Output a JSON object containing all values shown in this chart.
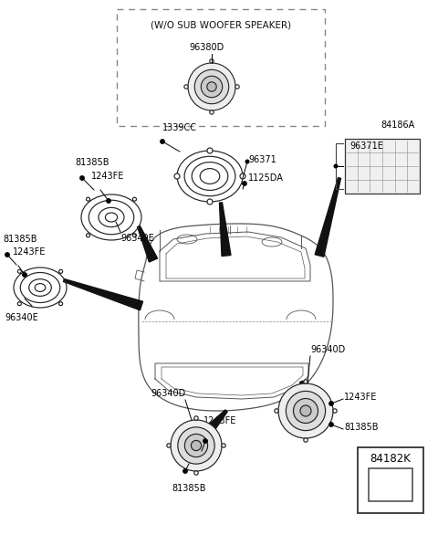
{
  "bg_color": "#ffffff",
  "fig_width": 4.8,
  "fig_height": 5.86,
  "dpi": 100,
  "labels": {
    "woofer_box_text": "(W/O SUB WOOFER SPEAKER)",
    "p96380D": "96380D",
    "p1339CC": "1339CC",
    "p96371": "96371",
    "p1125DA": "1125DA",
    "p84186A": "84186A",
    "p96371E": "96371E",
    "p81385B_top": "81385B",
    "p1243FE_top": "1243FE",
    "p96340E_top": "96340E",
    "p81385B_left": "81385B",
    "p1243FE_left": "1243FE",
    "p96340E_left": "96340E",
    "p96340D_bot1": "96340D",
    "p1243FE_bot1": "1243FE",
    "p81385B_bot1": "81385B",
    "p96340D_bot2": "96340D",
    "p1243FE_bot2": "1243FE",
    "p81385B_bot2": "81385B",
    "p84182K": "84182K"
  },
  "colors": {
    "line": "#000000",
    "dashed_box": "#888888"
  },
  "font_size": 7.0
}
